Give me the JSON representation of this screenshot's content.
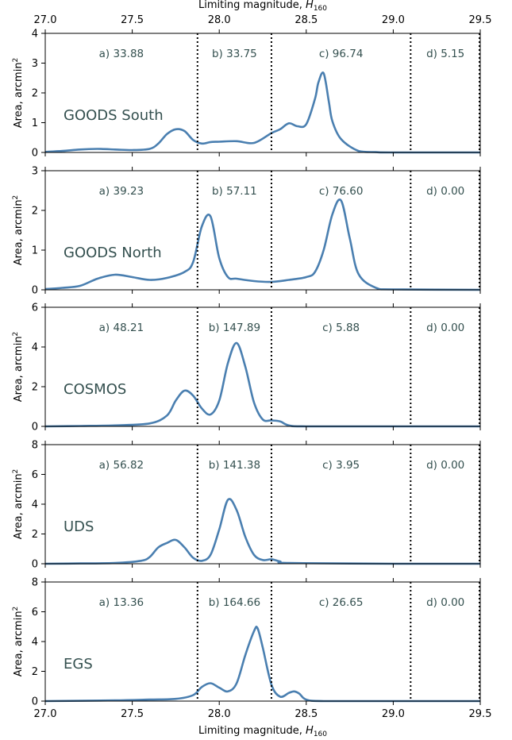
{
  "figure": {
    "top_xlabel": "Limiting magnitude, ",
    "bottom_xlabel": "Limiting magnitude, ",
    "xlabel_symbol": "H",
    "xlabel_subscript": "160",
    "ylabel": "Area, arcmin",
    "ylabel_sup": "2",
    "line_color": "#4a7fb0",
    "text_color": "#34504f"
  },
  "chart_data": [
    {
      "type": "line",
      "field": "GOODS South",
      "xlim": [
        27.0,
        29.5
      ],
      "ylim": [
        0,
        4
      ],
      "xticks": [
        "27.0",
        "27.5",
        "28.0",
        "28.5",
        "29.0",
        "29.5"
      ],
      "yticks": [
        "0",
        "1",
        "2",
        "3",
        "4"
      ],
      "dividers": [
        27.875,
        28.3,
        29.1
      ],
      "bins": [
        "a) 33.88",
        "b) 33.75",
        "c) 96.74",
        "d) 5.15"
      ],
      "x": [
        27.0,
        27.1,
        27.2,
        27.3,
        27.4,
        27.5,
        27.6,
        27.65,
        27.7,
        27.75,
        27.8,
        27.85,
        27.9,
        27.95,
        28.0,
        28.1,
        28.2,
        28.3,
        28.35,
        28.4,
        28.45,
        28.5,
        28.55,
        28.57,
        28.6,
        28.63,
        28.65,
        28.7,
        28.8,
        28.9,
        29.0,
        29.5
      ],
      "y": [
        0.02,
        0.05,
        0.1,
        0.12,
        0.1,
        0.08,
        0.12,
        0.3,
        0.62,
        0.78,
        0.72,
        0.42,
        0.3,
        0.35,
        0.36,
        0.38,
        0.32,
        0.65,
        0.78,
        0.98,
        0.88,
        0.95,
        1.8,
        2.35,
        2.66,
        1.7,
        1.05,
        0.45,
        0.05,
        0.01,
        0.0,
        0.0
      ]
    },
    {
      "type": "line",
      "field": "GOODS North",
      "xlim": [
        27.0,
        29.5
      ],
      "ylim": [
        0,
        3
      ],
      "xticks": [
        "27.0",
        "27.5",
        "28.0",
        "28.5",
        "29.0",
        "29.5"
      ],
      "yticks": [
        "0",
        "1",
        "2",
        "3"
      ],
      "dividers": [
        27.875,
        28.3,
        29.1
      ],
      "bins": [
        "a) 39.23",
        "b) 57.11",
        "c) 76.60",
        "d) 0.00"
      ],
      "x": [
        27.0,
        27.1,
        27.2,
        27.3,
        27.4,
        27.5,
        27.6,
        27.7,
        27.8,
        27.85,
        27.9,
        27.95,
        28.0,
        28.05,
        28.1,
        28.2,
        28.3,
        28.4,
        28.5,
        28.55,
        28.6,
        28.65,
        28.7,
        28.75,
        28.8,
        28.9,
        29.0,
        29.5
      ],
      "y": [
        0.02,
        0.05,
        0.1,
        0.28,
        0.38,
        0.32,
        0.25,
        0.3,
        0.45,
        0.7,
        1.6,
        1.85,
        0.8,
        0.32,
        0.28,
        0.22,
        0.2,
        0.25,
        0.32,
        0.45,
        1.0,
        1.9,
        2.25,
        1.3,
        0.4,
        0.05,
        0.01,
        0.0
      ]
    },
    {
      "type": "line",
      "field": "COSMOS",
      "xlim": [
        27.0,
        29.5
      ],
      "ylim": [
        0,
        6
      ],
      "xticks": [
        "27.0",
        "27.5",
        "28.0",
        "28.5",
        "29.0",
        "29.5"
      ],
      "yticks": [
        "0",
        "2",
        "4",
        "6"
      ],
      "dividers": [
        27.875,
        28.3,
        29.1
      ],
      "bins": [
        "a) 48.21",
        "b) 147.89",
        "c) 5.88",
        "d) 0.00"
      ],
      "x": [
        27.0,
        27.2,
        27.4,
        27.6,
        27.7,
        27.75,
        27.8,
        27.85,
        27.9,
        27.95,
        28.0,
        28.05,
        28.1,
        28.15,
        28.2,
        28.25,
        28.3,
        28.35,
        28.4,
        28.5,
        29.0,
        29.5
      ],
      "y": [
        0.0,
        0.02,
        0.05,
        0.15,
        0.55,
        1.3,
        1.8,
        1.55,
        0.9,
        0.6,
        1.3,
        3.2,
        4.2,
        3.0,
        1.2,
        0.35,
        0.3,
        0.25,
        0.05,
        0.0,
        0.0,
        0.0
      ]
    },
    {
      "type": "line",
      "field": "UDS",
      "xlim": [
        27.0,
        29.5
      ],
      "ylim": [
        0,
        8
      ],
      "xticks": [
        "27.0",
        "27.5",
        "28.0",
        "28.5",
        "29.0",
        "29.5"
      ],
      "yticks": [
        "0",
        "2",
        "4",
        "6",
        "8"
      ],
      "dividers": [
        27.875,
        28.3,
        29.1
      ],
      "bins": [
        "a) 56.82",
        "b) 141.38",
        "c) 3.95",
        "d) 0.00"
      ],
      "x": [
        27.0,
        27.2,
        27.4,
        27.55,
        27.6,
        27.65,
        27.7,
        27.75,
        27.8,
        27.85,
        27.9,
        27.95,
        28.0,
        28.05,
        28.1,
        28.15,
        28.2,
        28.25,
        28.3,
        28.35,
        28.4,
        29.0,
        29.5
      ],
      "y": [
        0.0,
        0.02,
        0.05,
        0.2,
        0.45,
        1.1,
        1.4,
        1.6,
        1.1,
        0.4,
        0.2,
        0.6,
        2.3,
        4.3,
        3.6,
        1.8,
        0.6,
        0.25,
        0.3,
        0.15,
        0.05,
        0.0,
        0.0
      ]
    },
    {
      "type": "line",
      "field": "EGS",
      "xlim": [
        27.0,
        29.5
      ],
      "ylim": [
        0,
        8
      ],
      "xticks": [
        "27.0",
        "27.5",
        "28.0",
        "28.5",
        "29.0",
        "29.5"
      ],
      "yticks": [
        "0",
        "2",
        "4",
        "6",
        "8"
      ],
      "dividers": [
        27.875,
        28.3,
        29.1
      ],
      "bins": [
        "a) 13.36",
        "b) 164.66",
        "c) 26.65",
        "d) 0.00"
      ],
      "x": [
        27.0,
        27.4,
        27.6,
        27.75,
        27.85,
        27.9,
        27.95,
        28.0,
        28.05,
        28.1,
        28.15,
        28.2,
        28.22,
        28.25,
        28.3,
        28.35,
        28.4,
        28.43,
        28.46,
        28.5,
        28.6,
        29.0,
        29.5
      ],
      "y": [
        0.0,
        0.05,
        0.1,
        0.15,
        0.4,
        0.95,
        1.2,
        0.9,
        0.65,
        1.2,
        3.1,
        4.7,
        4.9,
        3.6,
        1.1,
        0.3,
        0.55,
        0.65,
        0.5,
        0.1,
        0.0,
        0.0,
        0.0
      ]
    }
  ]
}
